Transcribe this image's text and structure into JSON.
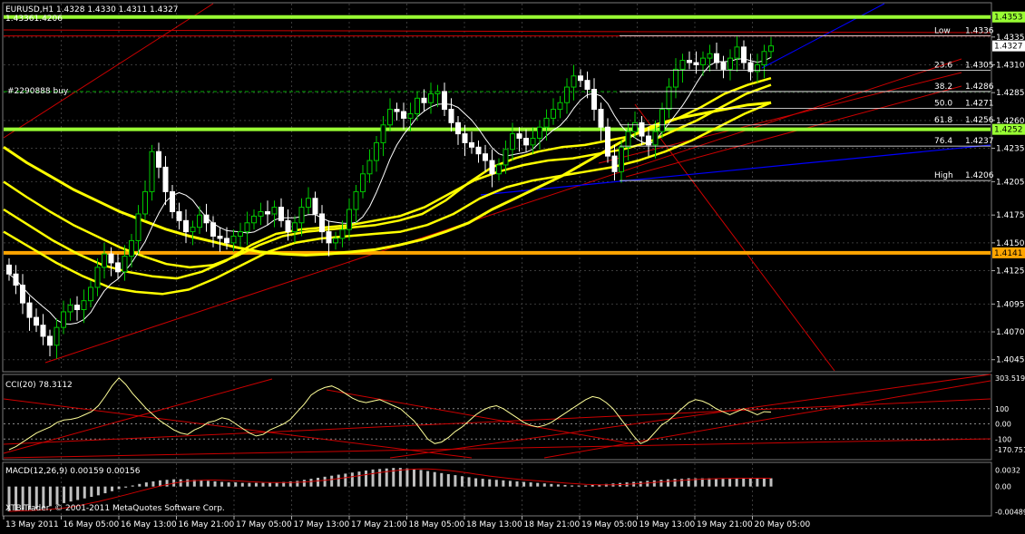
{
  "header": {
    "symbol_info": "EURUSD,H1  1.4328 1.4330 1.4311 1.4327",
    "level_text": "1.43361.4206",
    "order_label": "#2290888 buy"
  },
  "colors": {
    "background": "#000000",
    "grid": "#3a3a3a",
    "bull_candle": "#00c800",
    "bear_candle": "#ffffff",
    "ma": "#ffff00",
    "ma_thin": "#ffffff",
    "support_green": "#99ff33",
    "support_orange": "#ffa500",
    "trendline_red": "#cc0000",
    "trendline_blue": "#0000ff",
    "cci_line": "#ffff99",
    "macd_hist": "#c0c0c0",
    "macd_signal": "#cc0000"
  },
  "chart_data": [
    {
      "type": "candlestick",
      "title": "EURUSD,H1",
      "ohlc_last": {
        "open": 1.4328,
        "high": 1.433,
        "low": 1.4311,
        "close": 1.4327
      },
      "ylim": [
        1.4035,
        1.4365
      ],
      "y_ticks": [
        "1.4335",
        "1.4310",
        "1.4285",
        "1.4260",
        "1.4235",
        "1.4205",
        "1.4175",
        "1.4150",
        "1.4125",
        "1.4095",
        "1.4070",
        "1.4045"
      ],
      "y_tick_values": [
        1.4335,
        1.431,
        1.4285,
        1.426,
        1.4235,
        1.4205,
        1.4175,
        1.415,
        1.4125,
        1.4095,
        1.407,
        1.4045
      ],
      "x_ticks": [
        "13 May 2011",
        "16 May 05:00",
        "16 May 13:00",
        "16 May 21:00",
        "17 May 05:00",
        "17 May 13:00",
        "17 May 21:00",
        "18 May 05:00",
        "18 May 13:00",
        "18 May 21:00",
        "19 May 05:00",
        "19 May 13:00",
        "19 May 21:00",
        "20 May 05:00"
      ],
      "price_labels": [
        {
          "text": "1.4353",
          "value": 1.4353,
          "color": "#99ff33"
        },
        {
          "text": "1.4327",
          "value": 1.4327,
          "color": "#ffffff"
        },
        {
          "text": "1.4252",
          "value": 1.4252,
          "color": "#99ff33"
        },
        {
          "text": "1.4141",
          "value": 1.4141,
          "color": "#ffa500"
        }
      ],
      "horizontal_levels": [
        {
          "value": 1.4353,
          "color": "#99ff33"
        },
        {
          "value": 1.4252,
          "color": "#99ff33"
        },
        {
          "value": 1.4141,
          "color": "#ffa500"
        },
        {
          "value": 1.4336,
          "color": "#cc0000"
        }
      ],
      "fibonacci": [
        {
          "label": "Low",
          "level_value": "1.4336",
          "value": 1.4336
        },
        {
          "label": "23.6",
          "level_value": "1.4305",
          "value": 1.4305
        },
        {
          "label": "38.2",
          "level_value": "1.4286",
          "value": 1.4286
        },
        {
          "label": "50.0",
          "level_value": "1.4271",
          "value": 1.4271
        },
        {
          "label": "61.8",
          "level_value": "1.4256",
          "value": 1.4256
        },
        {
          "label": "76.4",
          "level_value": "1.4237",
          "value": 1.4237
        },
        {
          "label": "High",
          "level_value": "1.4206",
          "value": 1.4206
        }
      ],
      "closes": [
        1.4122,
        1.4112,
        1.4096,
        1.4083,
        1.4076,
        1.4066,
        1.4058,
        1.4074,
        1.4088,
        1.4094,
        1.409,
        1.4098,
        1.411,
        1.4128,
        1.414,
        1.4132,
        1.4124,
        1.4138,
        1.4152,
        1.4176,
        1.4196,
        1.4232,
        1.4218,
        1.4196,
        1.4178,
        1.417,
        1.416,
        1.4164,
        1.4175,
        1.4168,
        1.4156,
        1.4154,
        1.415,
        1.4156,
        1.416,
        1.4168,
        1.4174,
        1.4178,
        1.4176,
        1.4182,
        1.417,
        1.416,
        1.4168,
        1.4182,
        1.419,
        1.4176,
        1.416,
        1.415,
        1.4154,
        1.4162,
        1.418,
        1.4196,
        1.4212,
        1.4224,
        1.424,
        1.4256,
        1.427,
        1.4268,
        1.4262,
        1.4266,
        1.428,
        1.4276,
        1.4284,
        1.4286,
        1.427,
        1.4258,
        1.4248,
        1.424,
        1.4236,
        1.423,
        1.4224,
        1.4212,
        1.422,
        1.4234,
        1.4248,
        1.4244,
        1.4238,
        1.4244,
        1.4254,
        1.4262,
        1.427,
        1.4276,
        1.429,
        1.43,
        1.4296,
        1.4288,
        1.427,
        1.4254,
        1.4228,
        1.4214,
        1.4236,
        1.425,
        1.4258,
        1.4246,
        1.4238,
        1.425,
        1.427,
        1.429,
        1.4306,
        1.4314,
        1.4312,
        1.431,
        1.4316,
        1.432,
        1.4312,
        1.4306,
        1.4316,
        1.4326,
        1.4312,
        1.4304,
        1.431,
        1.4322,
        1.4327
      ],
      "series": [
        {
          "values": [
            1.4236,
            1.4222,
            1.421,
            1.4198,
            1.4188,
            1.4178,
            1.417,
            1.4162,
            1.4156,
            1.4151,
            1.4146,
            1.4142,
            1.414,
            1.4139,
            1.414,
            1.4142,
            1.4144,
            1.4148,
            1.4153,
            1.416,
            1.4168,
            1.418,
            1.419,
            1.42,
            1.421,
            1.4222,
            1.4234,
            1.4246,
            1.4256,
            1.4262,
            1.4266,
            1.427,
            1.4274,
            1.4276
          ]
        },
        {
          "values": [
            1.4205,
            1.4191,
            1.4178,
            1.4166,
            1.4156,
            1.4146,
            1.4138,
            1.4131,
            1.4128,
            1.413,
            1.4138,
            1.4148,
            1.4156,
            1.416,
            1.4162,
            1.4164,
            1.4166,
            1.417,
            1.4176,
            1.4188,
            1.4204,
            1.4218,
            1.4226,
            1.4232,
            1.4236,
            1.4238,
            1.4242,
            1.4246,
            1.4254,
            1.4262,
            1.4272,
            1.4284,
            1.4292,
            1.4298
          ]
        },
        {
          "values": [
            1.418,
            1.4166,
            1.4152,
            1.414,
            1.413,
            1.4124,
            1.412,
            1.4118,
            1.4124,
            1.4134,
            1.4148,
            1.4158,
            1.4162,
            1.4164,
            1.4166,
            1.417,
            1.4174,
            1.4182,
            1.4194,
            1.4206,
            1.4214,
            1.422,
            1.4224,
            1.4226,
            1.423,
            1.4234,
            1.424,
            1.425,
            1.426,
            1.4272,
            1.4284,
            1.4292
          ]
        },
        {
          "values": [
            1.416,
            1.4146,
            1.4132,
            1.412,
            1.411,
            1.4106,
            1.4104,
            1.4108,
            1.4118,
            1.413,
            1.4142,
            1.415,
            1.4154,
            1.4156,
            1.4158,
            1.416,
            1.4166,
            1.4176,
            1.419,
            1.42,
            1.4206,
            1.421,
            1.4214,
            1.4218,
            1.4224,
            1.4232,
            1.4242,
            1.4254,
            1.4266,
            1.4276
          ]
        }
      ]
    },
    {
      "type": "line",
      "title": "CCI(20) 78.3112",
      "ylim": [
        -230,
        320
      ],
      "y_ticks": [
        "303.519",
        "100",
        "0.00",
        "-100",
        "-170.751"
      ],
      "y_tick_values": [
        303.519,
        100,
        0,
        -100,
        -170.751
      ],
      "values": [
        -170,
        -150,
        -120,
        -90,
        -60,
        -40,
        -20,
        10,
        25,
        30,
        40,
        60,
        80,
        120,
        180,
        250,
        303,
        260,
        200,
        150,
        100,
        60,
        20,
        -10,
        -40,
        -60,
        -70,
        -40,
        -20,
        10,
        20,
        40,
        30,
        0,
        -30,
        -60,
        -80,
        -70,
        -40,
        -20,
        0,
        30,
        80,
        130,
        190,
        220,
        240,
        250,
        230,
        200,
        170,
        150,
        140,
        150,
        160,
        140,
        120,
        100,
        60,
        20,
        -40,
        -100,
        -130,
        -120,
        -90,
        -50,
        -20,
        20,
        60,
        90,
        110,
        120,
        100,
        70,
        40,
        10,
        -10,
        -20,
        -10,
        10,
        40,
        70,
        100,
        130,
        160,
        180,
        170,
        140,
        100,
        40,
        -20,
        -80,
        -130,
        -110,
        -60,
        -10,
        20,
        60,
        100,
        140,
        160,
        150,
        130,
        100,
        80,
        60,
        80,
        100,
        80,
        60,
        80,
        78
      ]
    },
    {
      "type": "bar",
      "title": "MACD(12,26,9) 0.00159 0.00156",
      "ylim": [
        -0.0055,
        0.0045
      ],
      "y_ticks": [
        "0.0032",
        "0.00",
        "-0.00489"
      ],
      "y_tick_values": [
        0.0032,
        0,
        -0.00489
      ],
      "values": [
        -0.0048,
        -0.0047,
        -0.0046,
        -0.0045,
        -0.0043,
        -0.0041,
        -0.0038,
        -0.0035,
        -0.0032,
        -0.0029,
        -0.0026,
        -0.0023,
        -0.002,
        -0.0017,
        -0.0013,
        -0.0009,
        -0.0005,
        -0.0002,
        0.0002,
        0.0005,
        0.0008,
        0.001,
        0.0012,
        0.0013,
        0.0014,
        0.0014,
        0.0014,
        0.0013,
        0.0012,
        0.0011,
        0.001,
        0.0009,
        0.0008,
        0.0008,
        0.0007,
        0.0007,
        0.0007,
        0.0007,
        0.0008,
        0.0008,
        0.0009,
        0.001,
        0.0011,
        0.0013,
        0.0015,
        0.0017,
        0.0019,
        0.0021,
        0.0023,
        0.0025,
        0.0027,
        0.0029,
        0.0031,
        0.0033,
        0.0034,
        0.0035,
        0.0036,
        0.0036,
        0.0035,
        0.0034,
        0.0032,
        0.003,
        0.0028,
        0.0026,
        0.0024,
        0.0022,
        0.002,
        0.0018,
        0.0016,
        0.0015,
        0.0014,
        0.0013,
        0.0012,
        0.0011,
        0.001,
        0.0009,
        0.0008,
        0.0007,
        0.0006,
        0.0005,
        0.0004,
        0.0003,
        0.0002,
        0.0002,
        0.0002,
        0.0003,
        0.0004,
        0.0005,
        0.0006,
        0.0007,
        0.0008,
        0.0009,
        0.001,
        0.0011,
        0.0012,
        0.0013,
        0.0014,
        0.0015,
        0.0015,
        0.0016,
        0.0016,
        0.0016,
        0.0016,
        0.0016,
        0.0016,
        0.0016,
        0.0016,
        0.0016,
        0.0016,
        0.0016,
        0.0016,
        0.0016
      ]
    }
  ],
  "footer": {
    "copyright": "XTB-Trader, © 2001-2011 MetaQuotes Software Corp."
  }
}
